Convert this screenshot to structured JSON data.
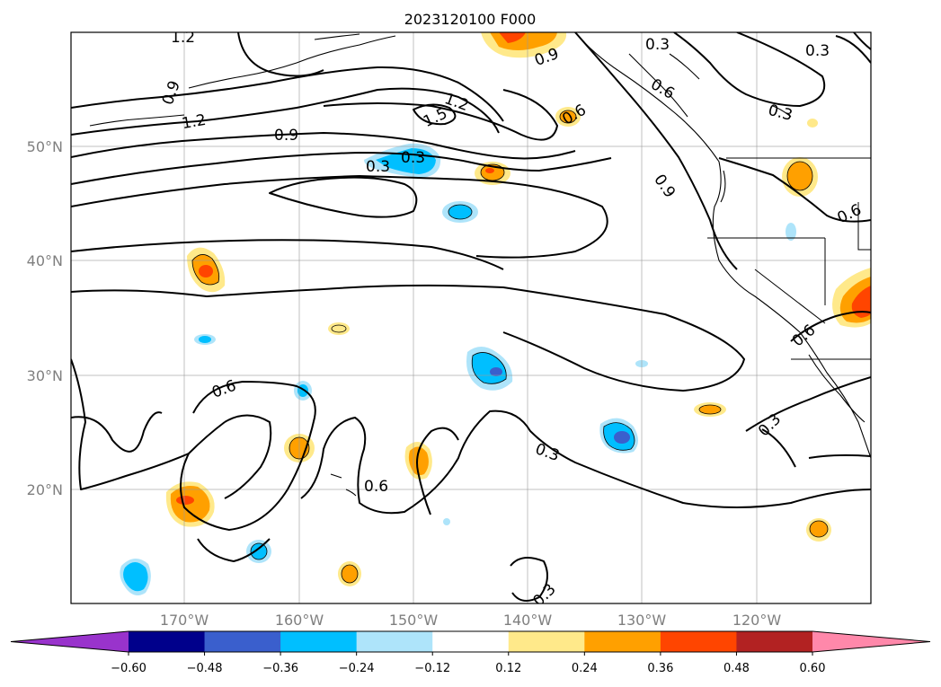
{
  "title": "2023120100 F000",
  "map": {
    "lon_range": [
      -180,
      -110
    ],
    "lat_range": [
      10,
      60
    ],
    "graticule_lons": [
      -170,
      -160,
      -150,
      -140,
      -130,
      -120
    ],
    "graticule_lats": [
      20,
      30,
      40,
      50
    ],
    "lon_tick_labels": [
      "170°W",
      "160°W",
      "150°W",
      "140°W",
      "130°W",
      "120°W"
    ],
    "lat_tick_labels": [
      "20°N",
      "30°N",
      "40°N",
      "50°N"
    ],
    "gridlines": true
  },
  "contour_labels": [
    "1.2",
    "0.9",
    "1.2",
    "0.9",
    "0.3",
    "1.5",
    "1.2",
    "0.9",
    "0.3",
    "0.6",
    "0.6",
    "0.3",
    "0.9",
    "0.3",
    "0.6",
    "0.6",
    "0.3",
    "0.6",
    "0.3",
    "0.3",
    "0.6",
    "0.3"
  ],
  "colorbar": {
    "tick_labels": [
      "−0.60",
      "−0.48",
      "−0.36",
      "−0.24",
      "−0.12",
      "0.12",
      "0.24",
      "0.36",
      "0.48",
      "0.60"
    ],
    "levels": [
      -0.6,
      -0.48,
      -0.36,
      -0.24,
      -0.12,
      0.12,
      0.24,
      0.36,
      0.48,
      0.6
    ],
    "colors": [
      "#9933cc",
      "#00008b",
      "#3a5fcd",
      "#00bfff",
      "#aee4fa",
      "#ffffff",
      "#ffe98a",
      "#ffa000",
      "#ff4500",
      "#b22222",
      "#ff88aa"
    ],
    "extend": "both"
  }
}
